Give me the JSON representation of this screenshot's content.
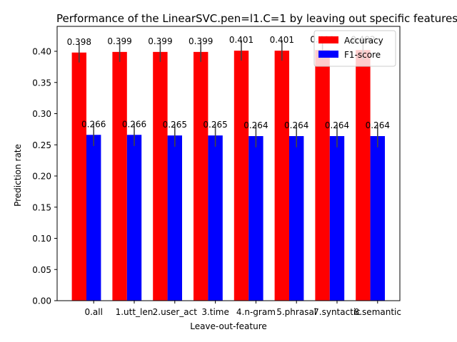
{
  "chart_data": {
    "type": "bar",
    "title": "Performance of the LinearSVC.pen=l1.C=1 by leaving out specific features",
    "xlabel": "Leave-out-feature",
    "ylabel": "Prediction rate",
    "categories": [
      "0.all",
      "1.utt_len",
      "2.user_act",
      "3.time",
      "4.n-gram",
      "5.phrasal",
      "7.syntactic",
      "8.semantic"
    ],
    "ylim": [
      0,
      0.44
    ],
    "yticks": [
      "0.00",
      "0.05",
      "0.10",
      "0.15",
      "0.20",
      "0.25",
      "0.30",
      "0.35",
      "0.40"
    ],
    "legend_position": "top-right",
    "grid": false,
    "series": [
      {
        "name": "Accuracy",
        "color": "#ff0000",
        "values": [
          0.398,
          0.399,
          0.399,
          0.399,
          0.401,
          0.401,
          0.402,
          0.402
        ],
        "labels": [
          "0.398",
          "0.399",
          "0.399",
          "0.399",
          "0.401",
          "0.401",
          "0.402",
          "0.402"
        ],
        "error": [
          0.016,
          0.016,
          0.016,
          0.016,
          0.016,
          0.016,
          0.016,
          0.016
        ]
      },
      {
        "name": "F1-score",
        "color": "#0000ff",
        "values": [
          0.266,
          0.266,
          0.265,
          0.265,
          0.264,
          0.264,
          0.264,
          0.264
        ],
        "labels": [
          "0.266",
          "0.266",
          "0.265",
          "0.265",
          "0.264",
          "0.264",
          "0.264",
          "0.264"
        ],
        "error": [
          0.018,
          0.018,
          0.018,
          0.018,
          0.018,
          0.018,
          0.018,
          0.018
        ]
      }
    ]
  }
}
